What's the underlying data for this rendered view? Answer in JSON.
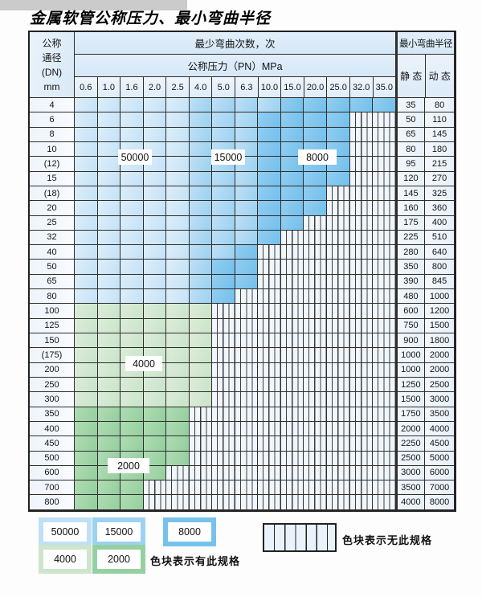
{
  "title": "金属软管公称压力、最小弯曲半径",
  "colors": {
    "blue_50000": "#c4e2f6",
    "blue_15000": "#9bd1f0",
    "blue_8000": "#72c0eb",
    "green_4000": "#c9e4c9",
    "green_2000": "#93cf9d",
    "no_spec_bg": "#f0f6fc",
    "border": "#2d2d2d"
  },
  "table": {
    "corner_header": {
      "line1": "公称",
      "line2": "通径",
      "line3": "(DN)",
      "line4": "mm"
    },
    "cycles_header": "最少弯曲次数，次",
    "pressure_header": "公称压力（PN）MPa",
    "radius_header": "最小弯曲半径",
    "static_label": "静 态",
    "dynamic_label": "动 态",
    "pressure_columns": [
      "0.6",
      "1.0",
      "1.6",
      "2.0",
      "2.5",
      "4.0",
      "5.0",
      "6.3",
      "10.0",
      "15.0",
      "20.0",
      "25.0",
      "32.0",
      "35.0"
    ],
    "cell_codes": {
      "b50": "50000",
      "b15": "15000",
      "b8": "8000",
      "g4": "4000",
      "g2": "2000",
      "x": "无此规格"
    },
    "overlay_labels": {
      "l50000": "50000",
      "l15000": "15000",
      "l8000": "8000",
      "l4000": "4000",
      "l2000": "2000"
    },
    "rows": [
      {
        "dn": "4",
        "static": "35",
        "dynamic": "80",
        "cells": [
          "b50",
          "b50",
          "b50",
          "b50",
          "b50",
          "b15",
          "b15",
          "b15",
          "b15",
          "b8",
          "b8",
          "b8",
          "b8",
          "b8"
        ]
      },
      {
        "dn": "6",
        "static": "50",
        "dynamic": "110",
        "cells": [
          "b50",
          "b50",
          "b50",
          "b50",
          "b50",
          "b15",
          "b15",
          "b15",
          "b8",
          "b8",
          "b8",
          "b8",
          "x",
          "x"
        ]
      },
      {
        "dn": "8",
        "static": "65",
        "dynamic": "145",
        "cells": [
          "b50",
          "b50",
          "b50",
          "b50",
          "b50",
          "b15",
          "b15",
          "b15",
          "b8",
          "b8",
          "b8",
          "b8",
          "x",
          "x"
        ]
      },
      {
        "dn": "10",
        "static": "80",
        "dynamic": "180",
        "cells": [
          "b50",
          "b50",
          "b50",
          "b50",
          "b50",
          "b15",
          "b15",
          "b15",
          "b8",
          "b8",
          "b8",
          "b8",
          "x",
          "x"
        ]
      },
      {
        "dn": "(12)",
        "static": "95",
        "dynamic": "215",
        "cells": [
          "b50",
          "b50",
          "b50",
          "b50",
          "b50",
          "b15",
          "b15",
          "b15",
          "b8",
          "b8",
          "b8",
          "b8",
          "x",
          "x"
        ]
      },
      {
        "dn": "15",
        "static": "120",
        "dynamic": "270",
        "cells": [
          "b50",
          "b50",
          "b50",
          "b50",
          "b50",
          "b15",
          "b15",
          "b15",
          "b8",
          "b8",
          "b8",
          "b8",
          "x",
          "x"
        ]
      },
      {
        "dn": "(18)",
        "static": "145",
        "dynamic": "325",
        "cells": [
          "b50",
          "b50",
          "b50",
          "b50",
          "b50",
          "b15",
          "b15",
          "b15",
          "b8",
          "b8",
          "b8",
          "x",
          "x",
          "x"
        ]
      },
      {
        "dn": "20",
        "static": "160",
        "dynamic": "360",
        "cells": [
          "b50",
          "b50",
          "b50",
          "b50",
          "b50",
          "b15",
          "b15",
          "b15",
          "b8",
          "b8",
          "b8",
          "x",
          "x",
          "x"
        ]
      },
      {
        "dn": "25",
        "static": "175",
        "dynamic": "400",
        "cells": [
          "b50",
          "b50",
          "b50",
          "b50",
          "b50",
          "b15",
          "b15",
          "b15",
          "b8",
          "b8",
          "x",
          "x",
          "x",
          "x"
        ]
      },
      {
        "dn": "32",
        "static": "225",
        "dynamic": "510",
        "cells": [
          "b50",
          "b50",
          "b50",
          "b50",
          "b50",
          "b15",
          "b15",
          "b15",
          "b8",
          "x",
          "x",
          "x",
          "x",
          "x"
        ]
      },
      {
        "dn": "40",
        "static": "280",
        "dynamic": "640",
        "cells": [
          "b50",
          "b50",
          "b50",
          "b50",
          "b50",
          "b15",
          "b15",
          "b8",
          "x",
          "x",
          "x",
          "x",
          "x",
          "x"
        ]
      },
      {
        "dn": "50",
        "static": "350",
        "dynamic": "800",
        "cells": [
          "b50",
          "b50",
          "b50",
          "b50",
          "b50",
          "b15",
          "b8",
          "b8",
          "x",
          "x",
          "x",
          "x",
          "x",
          "x"
        ]
      },
      {
        "dn": "65",
        "static": "390",
        "dynamic": "845",
        "cells": [
          "b50",
          "b50",
          "b50",
          "b50",
          "b50",
          "b15",
          "b8",
          "b8",
          "x",
          "x",
          "x",
          "x",
          "x",
          "x"
        ]
      },
      {
        "dn": "80",
        "static": "480",
        "dynamic": "1000",
        "cells": [
          "b50",
          "b50",
          "b50",
          "b50",
          "b50",
          "b15",
          "b8",
          "x",
          "x",
          "x",
          "x",
          "x",
          "x",
          "x"
        ]
      },
      {
        "dn": "100",
        "static": "600",
        "dynamic": "1200",
        "cells": [
          "g4",
          "g4",
          "g4",
          "g4",
          "g4",
          "g4",
          "x",
          "x",
          "x",
          "x",
          "x",
          "x",
          "x",
          "x"
        ]
      },
      {
        "dn": "125",
        "static": "750",
        "dynamic": "1500",
        "cells": [
          "g4",
          "g4",
          "g4",
          "g4",
          "g4",
          "g4",
          "x",
          "x",
          "x",
          "x",
          "x",
          "x",
          "x",
          "x"
        ]
      },
      {
        "dn": "150",
        "static": "900",
        "dynamic": "1800",
        "cells": [
          "g4",
          "g4",
          "g4",
          "g4",
          "g4",
          "g4",
          "x",
          "x",
          "x",
          "x",
          "x",
          "x",
          "x",
          "x"
        ]
      },
      {
        "dn": "(175)",
        "static": "1000",
        "dynamic": "2000",
        "cells": [
          "g4",
          "g4",
          "g4",
          "g4",
          "g4",
          "g4",
          "x",
          "x",
          "x",
          "x",
          "x",
          "x",
          "x",
          "x"
        ]
      },
      {
        "dn": "200",
        "static": "1000",
        "dynamic": "2000",
        "cells": [
          "g4",
          "g4",
          "g4",
          "g4",
          "g4",
          "g4",
          "x",
          "x",
          "x",
          "x",
          "x",
          "x",
          "x",
          "x"
        ]
      },
      {
        "dn": "250",
        "static": "1250",
        "dynamic": "2500",
        "cells": [
          "g4",
          "g4",
          "g4",
          "g4",
          "g4",
          "g4",
          "x",
          "x",
          "x",
          "x",
          "x",
          "x",
          "x",
          "x"
        ]
      },
      {
        "dn": "300",
        "static": "1500",
        "dynamic": "3000",
        "cells": [
          "g4",
          "g4",
          "g4",
          "g4",
          "g4",
          "g4",
          "x",
          "x",
          "x",
          "x",
          "x",
          "x",
          "x",
          "x"
        ]
      },
      {
        "dn": "350",
        "static": "1750",
        "dynamic": "3500",
        "cells": [
          "g2",
          "g2",
          "g2",
          "g2",
          "g2",
          "x",
          "x",
          "x",
          "x",
          "x",
          "x",
          "x",
          "x",
          "x"
        ]
      },
      {
        "dn": "400",
        "static": "2000",
        "dynamic": "4000",
        "cells": [
          "g2",
          "g2",
          "g2",
          "g2",
          "g2",
          "x",
          "x",
          "x",
          "x",
          "x",
          "x",
          "x",
          "x",
          "x"
        ]
      },
      {
        "dn": "450",
        "static": "2250",
        "dynamic": "4500",
        "cells": [
          "g2",
          "g2",
          "g2",
          "g2",
          "g2",
          "x",
          "x",
          "x",
          "x",
          "x",
          "x",
          "x",
          "x",
          "x"
        ]
      },
      {
        "dn": "500",
        "static": "2500",
        "dynamic": "5000",
        "cells": [
          "g2",
          "g2",
          "g2",
          "g2",
          "g2",
          "x",
          "x",
          "x",
          "x",
          "x",
          "x",
          "x",
          "x",
          "x"
        ]
      },
      {
        "dn": "600",
        "static": "3000",
        "dynamic": "6000",
        "cells": [
          "g2",
          "g2",
          "g2",
          "g2",
          "x",
          "x",
          "x",
          "x",
          "x",
          "x",
          "x",
          "x",
          "x",
          "x"
        ]
      },
      {
        "dn": "700",
        "static": "3500",
        "dynamic": "7000",
        "cells": [
          "g2",
          "g2",
          "g2",
          "x",
          "x",
          "x",
          "x",
          "x",
          "x",
          "x",
          "x",
          "x",
          "x",
          "x"
        ]
      },
      {
        "dn": "800",
        "static": "4000",
        "dynamic": "8000",
        "cells": [
          "g2",
          "g2",
          "g2",
          "x",
          "x",
          "x",
          "x",
          "x",
          "x",
          "x",
          "x",
          "x",
          "x",
          "x"
        ]
      }
    ]
  },
  "legend": {
    "items": {
      "b50": {
        "label": "50000"
      },
      "b15": {
        "label": "15000"
      },
      "b8": {
        "label": "8000"
      },
      "g4": {
        "label": "4000"
      },
      "g2": {
        "label": "2000"
      }
    },
    "has_spec_note": "色块表示有此规格",
    "no_spec_note": "色块表示无此规格"
  }
}
